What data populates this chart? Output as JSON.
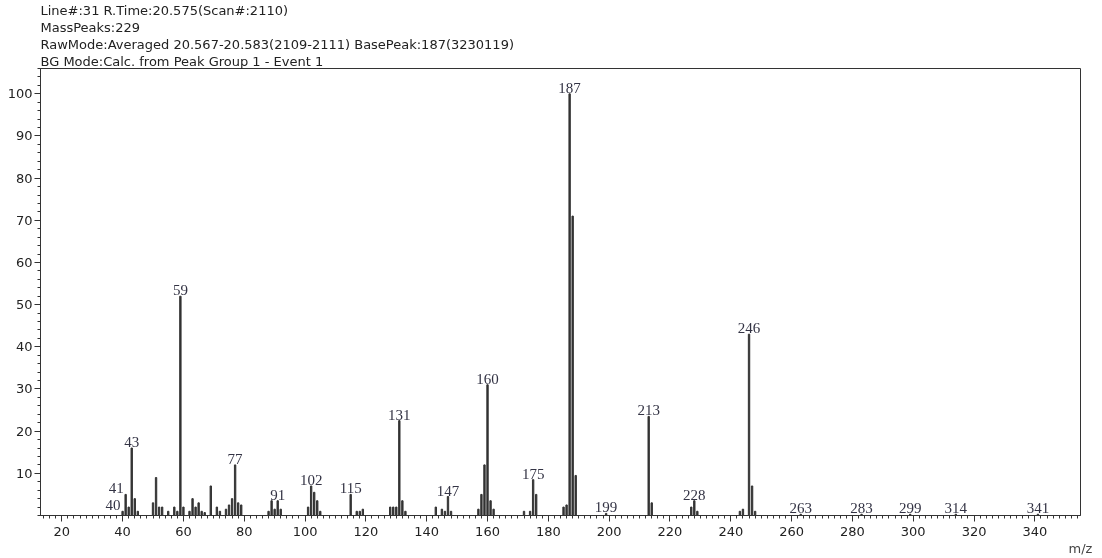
{
  "chart_data": {
    "type": "bar",
    "title": "Line#:31   R.Time:20.575(Scan#:2110)",
    "annotations": [
      "MassPeaks:229",
      "RawMode:Averaged 20.567-20.583(2109-2111)  BasePeak:187(3230119)",
      "BG Mode:Calc. from Peak  Group 1 - Event 1",
      {
        "text": "40",
        "x": 40,
        "y": 1
      },
      {
        "text": "41",
        "x": 41,
        "y": 5
      },
      {
        "text": "43",
        "x": 43,
        "y": 16
      },
      {
        "text": "59",
        "x": 59,
        "y": 52
      },
      {
        "text": "77",
        "x": 77,
        "y": 12
      },
      {
        "text": "91",
        "x": 91,
        "y": 3.5
      },
      {
        "text": "102",
        "x": 102,
        "y": 7
      },
      {
        "text": "115",
        "x": 115,
        "y": 5
      },
      {
        "text": "131",
        "x": 131,
        "y": 22.5
      },
      {
        "text": "147",
        "x": 147,
        "y": 4.5
      },
      {
        "text": "160",
        "x": 160,
        "y": 31
      },
      {
        "text": "175",
        "x": 175,
        "y": 8.5
      },
      {
        "text": "187",
        "x": 187,
        "y": 100
      },
      {
        "text": "199",
        "x": 199,
        "y": 0.5
      },
      {
        "text": "213",
        "x": 213,
        "y": 23.5
      },
      {
        "text": "228",
        "x": 228,
        "y": 3.5
      },
      {
        "text": "246",
        "x": 246,
        "y": 43
      },
      {
        "text": "263",
        "x": 263,
        "y": 0.3
      },
      {
        "text": "283",
        "x": 283,
        "y": 0.3
      },
      {
        "text": "299",
        "x": 299,
        "y": 0.3
      },
      {
        "text": "314",
        "x": 314,
        "y": 0.3
      },
      {
        "text": "341",
        "x": 341,
        "y": 0.3
      }
    ],
    "xlabel": "m/z",
    "x": [
      40,
      41,
      42,
      43,
      44,
      45,
      50,
      51,
      52,
      53,
      55,
      57,
      58,
      59,
      60,
      62,
      63,
      64,
      65,
      66,
      67,
      69,
      71,
      72,
      74,
      75,
      76,
      77,
      78,
      79,
      88,
      89,
      90,
      91,
      92,
      101,
      102,
      103,
      104,
      105,
      115,
      117,
      118,
      119,
      128,
      129,
      130,
      131,
      132,
      133,
      143,
      145,
      146,
      147,
      148,
      157,
      158,
      159,
      160,
      161,
      162,
      172,
      174,
      175,
      176,
      185,
      186,
      187,
      188,
      189,
      199,
      213,
      214,
      227,
      228,
      229,
      243,
      244,
      246,
      247,
      248,
      263,
      283,
      299,
      314,
      341
    ],
    "values": [
      1,
      5,
      2,
      16,
      4,
      1,
      3,
      9,
      2,
      2,
      1,
      2,
      1,
      52,
      2,
      1,
      4,
      2,
      3,
      1,
      0.7,
      7,
      2,
      1,
      1.5,
      2.5,
      4,
      12,
      3,
      2.5,
      1,
      3.5,
      1.5,
      3.5,
      1.5,
      2,
      7,
      5.5,
      3.5,
      1,
      5,
      1,
      1,
      1.5,
      2,
      2,
      2,
      22.5,
      3.5,
      1,
      2,
      1.5,
      1,
      4.5,
      1,
      1.5,
      5,
      12,
      31,
      3.5,
      1.5,
      1,
      1,
      8.5,
      5,
      2,
      2.5,
      100,
      71,
      9.5,
      0.5,
      23.5,
      3,
      2,
      3.5,
      1,
      1,
      1.5,
      43,
      7,
      1,
      0.3,
      0.3,
      0.3,
      0.3,
      0.3
    ],
    "color": "#333333",
    "xlim": [
      13,
      355
    ],
    "ylim": [
      0,
      106
    ],
    "xticks": [
      20,
      40,
      60,
      80,
      100,
      120,
      140,
      160,
      180,
      200,
      220,
      240,
      260,
      280,
      300,
      320,
      340
    ],
    "yticks": [
      10,
      20,
      30,
      40,
      50,
      60,
      70,
      80,
      90,
      100
    ],
    "grid": false
  }
}
